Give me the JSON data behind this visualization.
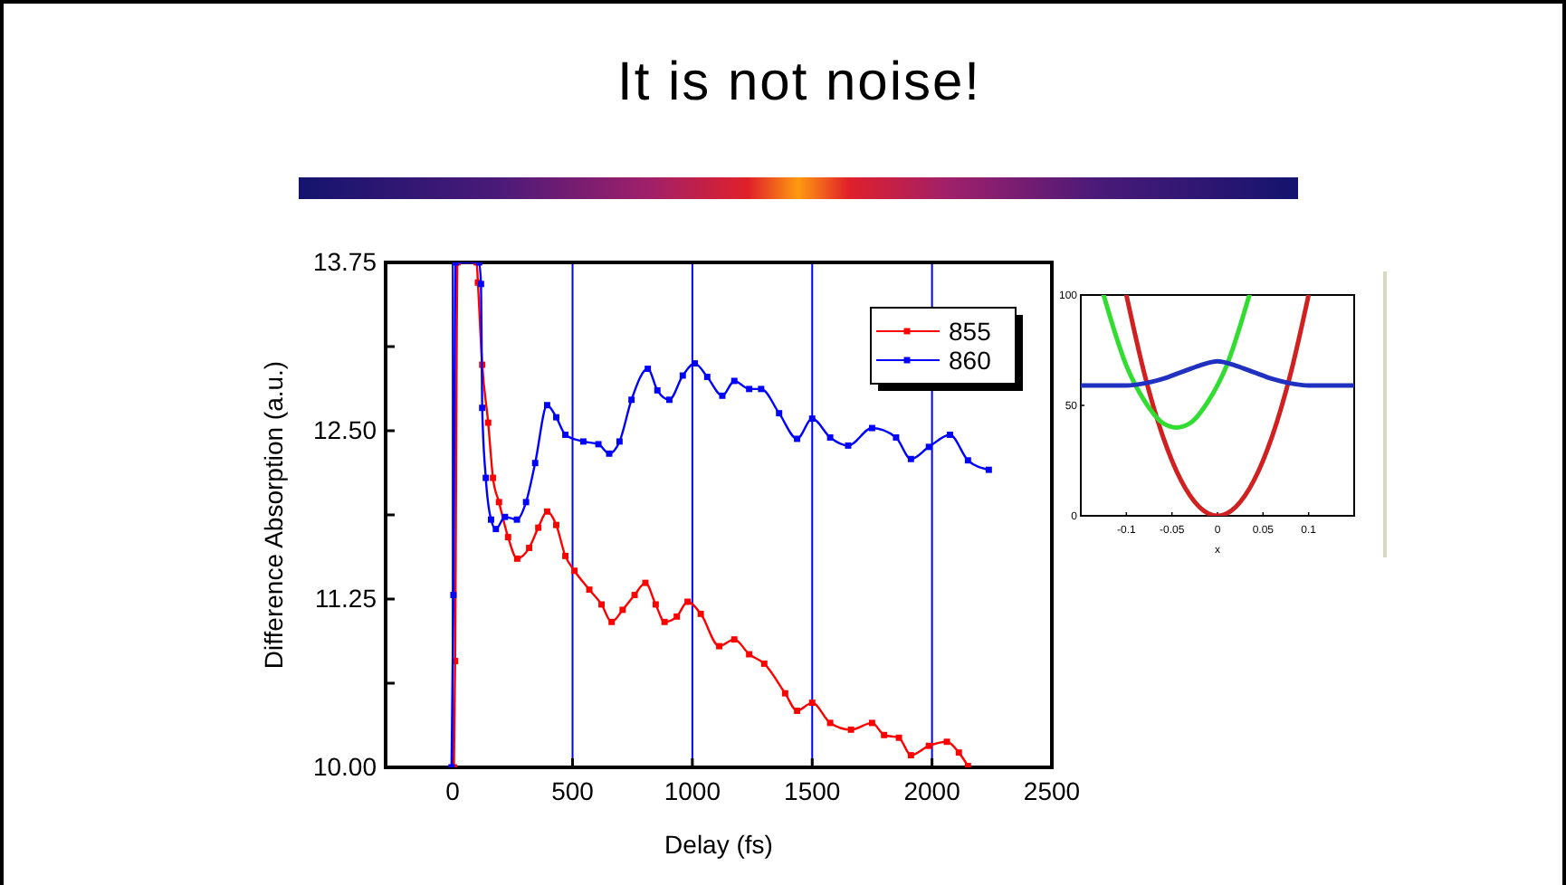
{
  "chart_data": [
    {
      "type": "line",
      "title": "It is not noise!",
      "xlabel": "Delay (fs)",
      "ylabel": "Difference Absorption (a.u.)",
      "xlim": [
        -280,
        2500
      ],
      "xticks": [
        0,
        500,
        1000,
        1500,
        2000,
        2500
      ],
      "ylim": [
        10,
        13.75
      ],
      "yticks": [
        {
          "value": 10,
          "label": "10.00"
        },
        {
          "value": 10.625,
          "label": null
        },
        {
          "value": 11.25,
          "label": "11.25"
        },
        {
          "value": 11.875,
          "label": null
        },
        {
          "value": 12.5,
          "label": "12.50"
        },
        {
          "value": 13.125,
          "label": null
        },
        {
          "value": 13.75,
          "label": "13.75"
        }
      ],
      "marker": "square",
      "line_style": "solid",
      "legend": "top right",
      "ref_lines": [
        {
          "axis": "x",
          "value": 0,
          "color": "#0000ff"
        },
        {
          "axis": "x",
          "value": 500,
          "color": "#0000ff"
        },
        {
          "axis": "x",
          "value": 1000,
          "color": "#0000ff"
        },
        {
          "axis": "x",
          "value": 1500,
          "color": "#0000ff"
        },
        {
          "axis": "x",
          "value": 2000,
          "color": "#0000ff"
        }
      ],
      "series": [
        {
          "name": "855",
          "color": "#ff0000",
          "x": [
            5,
            10,
            20,
            100,
            105,
            123,
            148,
            168,
            193,
            231,
            269,
            319,
            357,
            394,
            432,
            470,
            508,
            570,
            621,
            663,
            709,
            759,
            804,
            847,
            884,
            935,
            980,
            1035,
            1112,
            1175,
            1237,
            1300,
            1387,
            1437,
            1500,
            1575,
            1662,
            1750,
            1800,
            1862,
            1912,
            1987,
            2062,
            2112,
            2150
          ],
          "values": [
            10.0,
            10.79,
            13.75,
            13.75,
            13.6,
            12.99,
            12.56,
            12.15,
            11.97,
            11.71,
            11.55,
            11.63,
            11.78,
            11.9,
            11.8,
            11.57,
            11.46,
            11.32,
            11.21,
            11.08,
            11.17,
            11.28,
            11.37,
            11.21,
            11.08,
            11.12,
            11.23,
            11.14,
            10.9,
            10.95,
            10.84,
            10.77,
            10.55,
            10.42,
            10.48,
            10.33,
            10.28,
            10.33,
            10.24,
            10.22,
            10.09,
            10.16,
            10.19,
            10.11,
            10.01
          ]
        },
        {
          "name": "860",
          "color": "#0000ff",
          "x": [
            -5,
            3,
            12,
            110,
            118,
            123,
            138,
            160,
            180,
            218,
            268,
            306,
            344,
            394,
            432,
            470,
            545,
            608,
            653,
            696,
            746,
            814,
            854,
            904,
            960,
            1010,
            1062,
            1125,
            1175,
            1237,
            1287,
            1362,
            1437,
            1500,
            1575,
            1650,
            1750,
            1850,
            1912,
            1987,
            2075,
            2150,
            2237
          ],
          "values": [
            10.0,
            11.28,
            13.75,
            13.75,
            13.59,
            12.67,
            12.15,
            11.84,
            11.77,
            11.86,
            11.84,
            11.97,
            12.26,
            12.69,
            12.6,
            12.47,
            12.42,
            12.4,
            12.33,
            12.42,
            12.73,
            12.96,
            12.8,
            12.73,
            12.91,
            13.0,
            12.9,
            12.76,
            12.87,
            12.81,
            12.81,
            12.63,
            12.44,
            12.59,
            12.45,
            12.39,
            12.52,
            12.45,
            12.29,
            12.38,
            12.47,
            12.28,
            12.21
          ]
        }
      ]
    },
    {
      "type": "line",
      "xlabel": "x",
      "xlim": [
        -0.15,
        0.15
      ],
      "xticks": [
        -0.1,
        -0.05,
        0,
        0.05,
        0.1
      ],
      "ylim": [
        0,
        100
      ],
      "yticks": [
        0,
        50,
        100
      ],
      "series": [
        {
          "color": "#d02020",
          "x": [
            -0.1,
            -0.08,
            -0.06,
            -0.04,
            -0.02,
            0,
            0.02,
            0.04,
            0.06,
            0.08,
            0.1
          ],
          "values": [
            100,
            64,
            36,
            16,
            4,
            0,
            4,
            16,
            36,
            64,
            100
          ]
        },
        {
          "color": "#30dd30",
          "x": [
            -0.125,
            -0.1,
            -0.08,
            -0.06,
            -0.045,
            -0.03,
            -0.01,
            0.01,
            0.035
          ],
          "values": [
            100,
            68,
            52,
            42,
            40,
            42,
            52,
            68,
            100
          ]
        },
        {
          "color": "#2030c0",
          "x": [
            -0.15,
            -0.1,
            -0.08,
            -0.06,
            -0.04,
            -0.02,
            0,
            0.02,
            0.04,
            0.06,
            0.08,
            0.1,
            0.15
          ],
          "values": [
            59,
            59,
            60,
            62,
            65,
            68,
            70,
            68,
            65,
            62,
            60,
            59,
            59
          ]
        }
      ]
    }
  ]
}
